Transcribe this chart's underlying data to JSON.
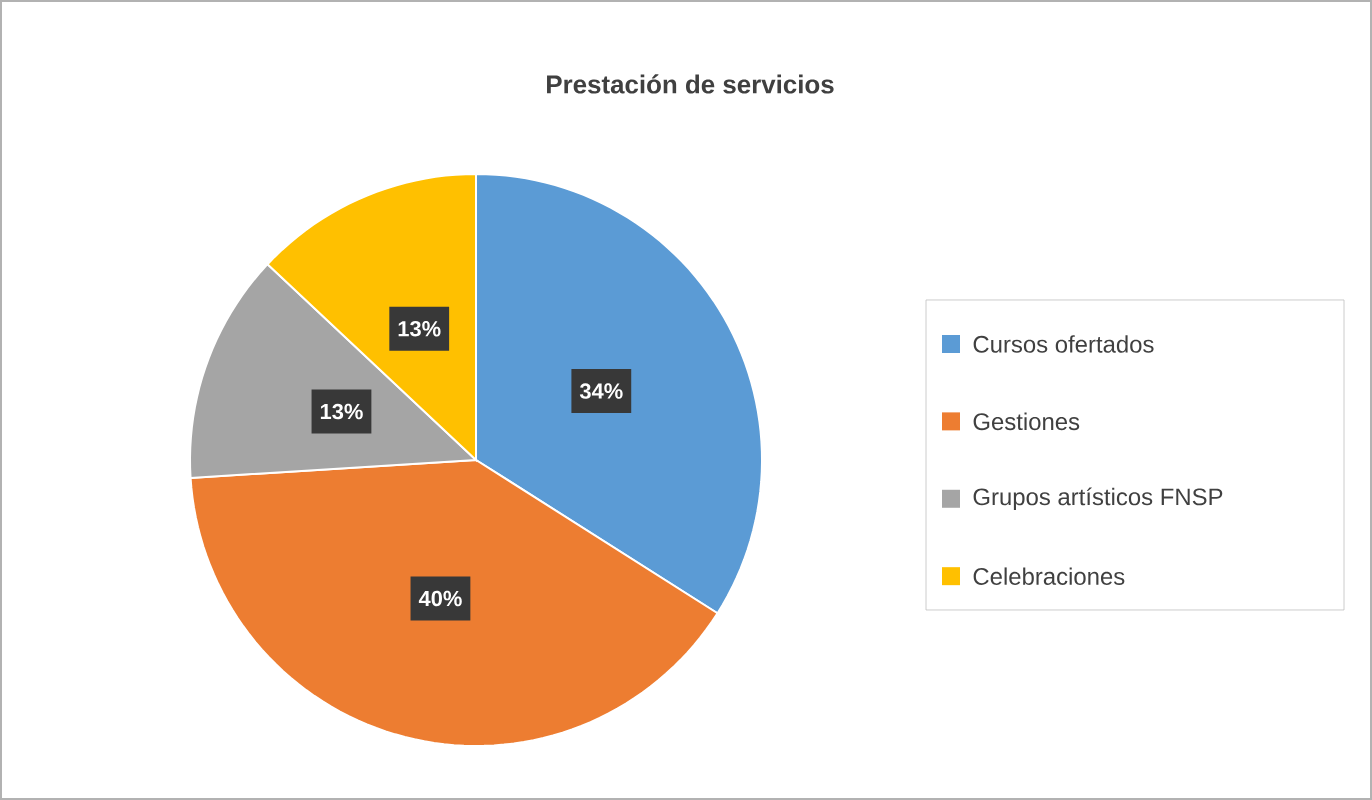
{
  "chart_data": {
    "type": "pie",
    "title": "Prestación de servicios",
    "categories": [
      "Cursos ofertados",
      "Gestiones",
      "Grupos artísticos FNSP",
      "Celebraciones"
    ],
    "values": [
      34,
      40,
      13,
      13
    ],
    "value_labels": [
      "34%",
      "40%",
      "13%",
      "13%"
    ],
    "colors": [
      "#5b9bd5",
      "#ed7d31",
      "#a5a5a5",
      "#ffc000"
    ],
    "legend": "right"
  }
}
